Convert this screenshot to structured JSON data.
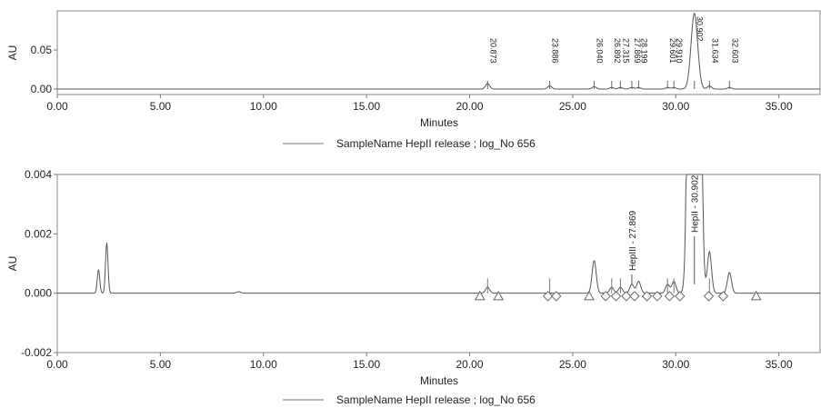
{
  "chart_data": [
    {
      "type": "line",
      "xlabel": "Minutes",
      "ylabel": "AU",
      "xlim": [
        0,
        37
      ],
      "ylim": [
        -0.007,
        0.1
      ],
      "x_ticks": [
        0,
        5,
        10,
        15,
        20,
        25,
        30,
        35
      ],
      "x_tick_labels": [
        "0.00",
        "5.00",
        "10.00",
        "15.00",
        "20.00",
        "25.00",
        "30.00",
        "35.00"
      ],
      "y_ticks": [
        0,
        0.05
      ],
      "y_tick_labels": [
        "0.00",
        "0.05"
      ],
      "legend": "SampleName HepII release ; log_No 656",
      "legend_position": "bottom-center",
      "series": [
        {
          "name": "SampleName HepII release ; log_No 656",
          "peaks": [
            {
              "rt": 20.873,
              "height": 0.007,
              "label": "20.873"
            },
            {
              "rt": 23.886,
              "height": 0.004,
              "label": "23.886"
            },
            {
              "rt": 26.04,
              "height": 0.003,
              "label": "26.040"
            },
            {
              "rt": 26.892,
              "height": 0.002,
              "label": "26.892"
            },
            {
              "rt": 27.315,
              "height": 0.002,
              "label": "27.315"
            },
            {
              "rt": 27.869,
              "height": 0.002,
              "label": "27.869"
            },
            {
              "rt": 28.199,
              "height": 0.002,
              "label": "28.199"
            },
            {
              "rt": 29.601,
              "height": 0.002,
              "label": "29.601"
            },
            {
              "rt": 29.91,
              "height": 0.002,
              "label": "29.910"
            },
            {
              "rt": 30.902,
              "height": 0.097,
              "label": "30.902"
            },
            {
              "rt": 31.634,
              "height": 0.004,
              "label": "31.634"
            },
            {
              "rt": 32.603,
              "height": 0.002,
              "label": "32.603"
            }
          ]
        }
      ]
    },
    {
      "type": "line",
      "xlabel": "Minutes",
      "ylabel": "AU",
      "xlim": [
        0,
        37
      ],
      "ylim": [
        -0.002,
        0.004
      ],
      "x_ticks": [
        0,
        5,
        10,
        15,
        20,
        25,
        30,
        35
      ],
      "x_tick_labels": [
        "0.00",
        "5.00",
        "10.00",
        "15.00",
        "20.00",
        "25.00",
        "30.00",
        "35.00"
      ],
      "y_ticks": [
        -0.002,
        0,
        0.002,
        0.004
      ],
      "y_tick_labels": [
        "-0.002",
        "0.000",
        "0.002",
        "0.004"
      ],
      "legend": "SampleName HepII release ; log_No 656",
      "legend_position": "bottom-center",
      "annotations": [
        {
          "text": "HepIII - 27.869",
          "x": 27.869
        },
        {
          "text": "HepII - 30.902",
          "x": 30.902
        }
      ],
      "series": [
        {
          "name": "SampleName HepII release ; log_No 656",
          "peaks": [
            {
              "rt": 2.0,
              "height": 0.0008
            },
            {
              "rt": 2.4,
              "height": 0.0017
            },
            {
              "rt": 8.8,
              "height": 5e-05
            },
            {
              "rt": 20.873,
              "height": 0.0002
            },
            {
              "rt": 26.04,
              "height": 0.0011
            },
            {
              "rt": 26.892,
              "height": 0.0002
            },
            {
              "rt": 27.315,
              "height": 0.0002
            },
            {
              "rt": 27.869,
              "height": 0.0003
            },
            {
              "rt": 28.199,
              "height": 0.0004
            },
            {
              "rt": 29.601,
              "height": 0.0003
            },
            {
              "rt": 29.91,
              "height": 0.0004
            },
            {
              "rt": 30.902,
              "height": 0.097
            },
            {
              "rt": 31.634,
              "height": 0.0014
            },
            {
              "rt": 32.603,
              "height": 0.0007
            }
          ],
          "integration_markers": [
            {
              "x": 20.5,
              "shape": "triangle"
            },
            {
              "x": 21.4,
              "shape": "triangle"
            },
            {
              "x": 23.8,
              "shape": "diamond"
            },
            {
              "x": 24.2,
              "shape": "diamond"
            },
            {
              "x": 25.8,
              "shape": "triangle"
            },
            {
              "x": 26.6,
              "shape": "diamond"
            },
            {
              "x": 27.1,
              "shape": "diamond"
            },
            {
              "x": 27.6,
              "shape": "diamond"
            },
            {
              "x": 28.0,
              "shape": "diamond"
            },
            {
              "x": 28.6,
              "shape": "diamond"
            },
            {
              "x": 29.1,
              "shape": "diamond"
            },
            {
              "x": 29.7,
              "shape": "diamond"
            },
            {
              "x": 30.2,
              "shape": "diamond"
            },
            {
              "x": 31.6,
              "shape": "diamond"
            },
            {
              "x": 32.3,
              "shape": "diamond"
            },
            {
              "x": 33.9,
              "shape": "triangle"
            }
          ]
        }
      ]
    }
  ]
}
